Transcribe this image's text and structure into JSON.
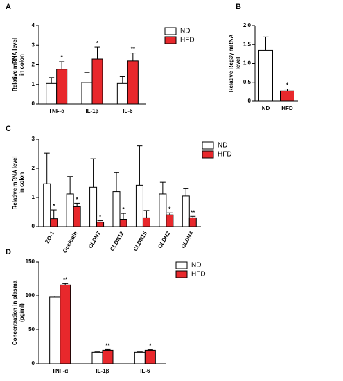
{
  "chart_data": [
    {
      "type": "bar",
      "panel": "A",
      "ylabel": [
        "Relative mRNA level",
        "in colon"
      ],
      "categories": [
        "TNF-α",
        "IL-1β",
        "IL-6"
      ],
      "series": [
        {
          "name": "ND",
          "color": "#ffffff",
          "values": [
            1.05,
            1.1,
            1.05
          ],
          "errors": [
            0.3,
            0.5,
            0.35
          ],
          "significance": [
            null,
            null,
            null
          ]
        },
        {
          "name": "HFD",
          "color": "#e8282c",
          "values": [
            1.78,
            2.3,
            2.2
          ],
          "errors": [
            0.38,
            0.6,
            0.4
          ],
          "significance": [
            "*",
            "*",
            "**"
          ]
        }
      ],
      "ylim": [
        0,
        4
      ],
      "yticks": [
        0,
        1,
        2,
        3,
        4
      ],
      "legend": "right"
    },
    {
      "type": "bar",
      "panel": "B",
      "ylabel": [
        "Relative Reg3γ mRNA",
        "level"
      ],
      "categories": [
        "ND",
        "HFD"
      ],
      "series": [
        {
          "colors": [
            "#ffffff",
            "#e8282c"
          ],
          "values": [
            1.35,
            0.27
          ],
          "errors": [
            0.35,
            0.05
          ],
          "significance": [
            null,
            "*"
          ]
        }
      ],
      "ylim": [
        0,
        2
      ],
      "yticks": [
        0,
        0.5,
        {
          "value": 1,
          "label": "1.0"
        },
        1.5,
        {
          "value": 2,
          "label": "2.0"
        }
      ]
    },
    {
      "type": "bar",
      "panel": "C",
      "ylabel": [
        "Relative mRNA level",
        "in colon"
      ],
      "categories": [
        "ZO-1",
        "Occludin",
        "CLDN7",
        "CLDN12",
        "CLDN15",
        "CLDN2",
        "CLDN4"
      ],
      "series": [
        {
          "name": "ND",
          "color": "#ffffff",
          "values": [
            1.47,
            1.12,
            1.35,
            1.2,
            1.42,
            1.12,
            1.05
          ],
          "errors": [
            1.05,
            0.6,
            0.98,
            0.65,
            1.35,
            0.4,
            0.25
          ],
          "significance": [
            null,
            null,
            null,
            null,
            null,
            null,
            null
          ]
        },
        {
          "name": "HFD",
          "color": "#e8282c",
          "values": [
            0.27,
            0.68,
            0.15,
            0.25,
            0.3,
            0.4,
            0.3
          ],
          "errors": [
            0.3,
            0.12,
            0.05,
            0.2,
            0.25,
            0.07,
            0.05
          ],
          "significance": [
            "*",
            "*",
            "*",
            "*",
            null,
            "*",
            "**"
          ]
        }
      ],
      "ylim": [
        0,
        3
      ],
      "yticks": [
        0,
        1,
        2,
        3
      ],
      "legend": "right"
    },
    {
      "type": "bar",
      "panel": "D",
      "ylabel": [
        "Concentration in plasma",
        "(pg/ml)"
      ],
      "categories": [
        "TNF-α",
        "IL-1β",
        "IL-6"
      ],
      "series": [
        {
          "name": "ND",
          "color": "#ffffff",
          "values": [
            98,
            17,
            17
          ],
          "errors": [
            1.5,
            0.6,
            0.6
          ],
          "significance": [
            null,
            null,
            null
          ]
        },
        {
          "name": "HFD",
          "color": "#e8282c",
          "values": [
            116,
            20,
            20
          ],
          "errors": [
            2,
            1,
            0.8
          ],
          "significance": [
            "**",
            "**",
            "*"
          ]
        }
      ],
      "ylim": [
        0,
        150
      ],
      "yticks": [
        0,
        50,
        100,
        150
      ],
      "legend": "right"
    }
  ]
}
